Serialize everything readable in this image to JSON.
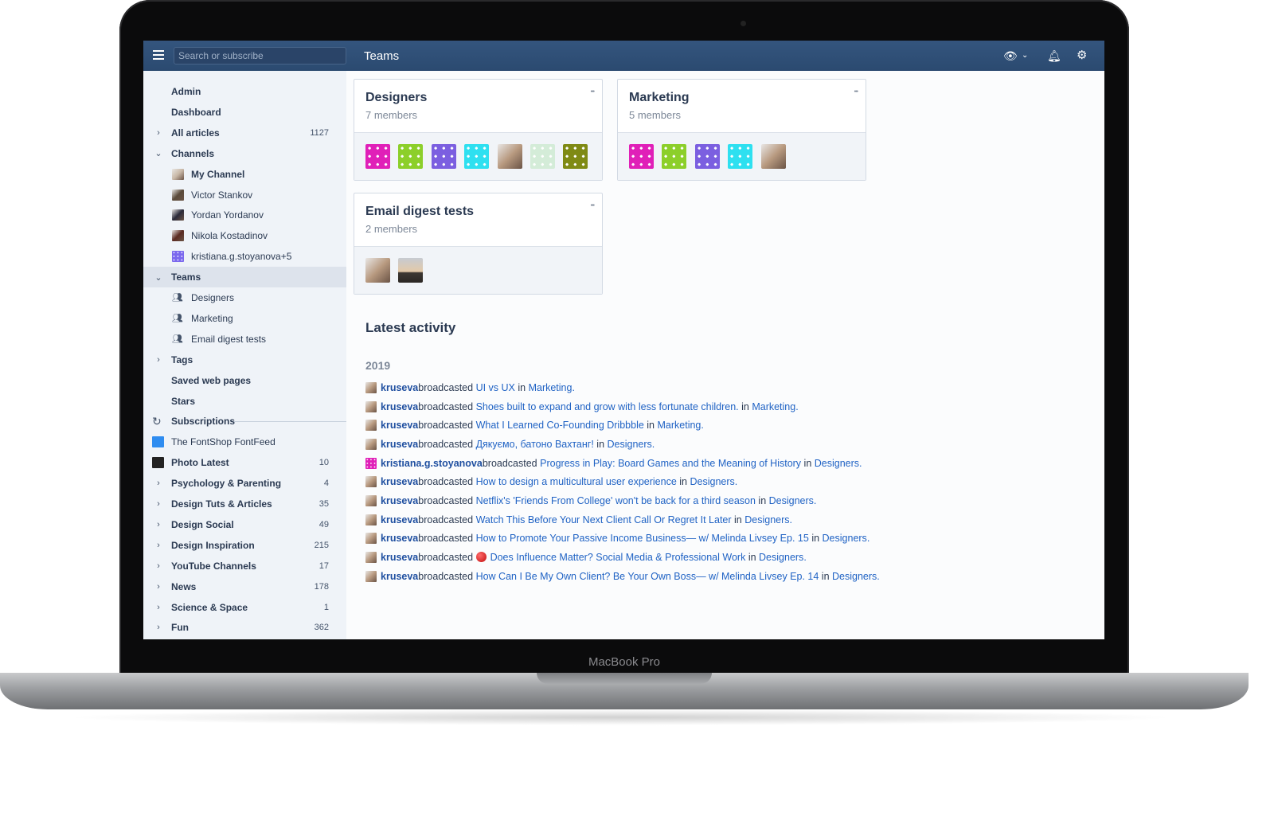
{
  "device": {
    "brand": "MacBook Pro"
  },
  "header": {
    "search_placeholder": "Search or subscribe",
    "title": "Teams",
    "icons": [
      "menu-icon",
      "eye-icon",
      "chevron-down-icon",
      "bell-icon",
      "gear-icon"
    ]
  },
  "sidebar": {
    "items": [
      {
        "label": "Admin",
        "bold": true
      },
      {
        "label": "Dashboard",
        "bold": true
      },
      {
        "label": "All articles",
        "bold": true,
        "chevron": "›",
        "count": "1127"
      },
      {
        "label": "Channels",
        "bold": true,
        "chevron": "⌄"
      },
      {
        "label": "My Channel",
        "bold": true,
        "sub": true,
        "icon": "photo",
        "color": "#c9b8a8"
      },
      {
        "label": "Victor Stankov",
        "sub": true,
        "icon": "photo",
        "color": "#5a4a3a"
      },
      {
        "label": "Yordan Yordanov",
        "sub": true,
        "icon": "photo",
        "color": "#2a2a3a"
      },
      {
        "label": "Nikola Kostadinov",
        "sub": true,
        "icon": "photo",
        "color": "#5a2a22"
      },
      {
        "label": "kristiana.g.stoyanova+5",
        "sub": true,
        "icon": "identicon",
        "color": "#7b68ee"
      },
      {
        "label": "Teams",
        "bold": true,
        "chevron": "⌄",
        "selected": true
      },
      {
        "label": "Designers",
        "sub": true,
        "icon": "team"
      },
      {
        "label": "Marketing",
        "sub": true,
        "icon": "team"
      },
      {
        "label": "Email digest tests",
        "sub": true,
        "icon": "team"
      },
      {
        "label": "Tags",
        "bold": true,
        "chevron": "›"
      },
      {
        "label": "Saved web pages",
        "bold": true
      },
      {
        "label": "Stars",
        "bold": true
      },
      {
        "label": "Subscriptions",
        "bold": true,
        "icon": "refresh",
        "divider": true
      },
      {
        "label": "The FontShop FontFeed",
        "icon": "feed",
        "color": "#2e8cf0"
      },
      {
        "label": "Photo Latest",
        "bold": true,
        "icon": "feed",
        "color": "#222222",
        "count": "10"
      },
      {
        "label": "Psychology & Parenting",
        "bold": true,
        "chevron": "›",
        "count": "4"
      },
      {
        "label": "Design Tuts & Articles",
        "bold": true,
        "chevron": "›",
        "count": "35"
      },
      {
        "label": "Design Social",
        "bold": true,
        "chevron": "›",
        "count": "49"
      },
      {
        "label": "Design Inspiration",
        "bold": true,
        "chevron": "›",
        "count": "215"
      },
      {
        "label": "YouTube Channels",
        "bold": true,
        "chevron": "›",
        "count": "17"
      },
      {
        "label": "News",
        "bold": true,
        "chevron": "›",
        "count": "178"
      },
      {
        "label": "Science & Space",
        "bold": true,
        "chevron": "›",
        "count": "1"
      },
      {
        "label": "Fun",
        "bold": true,
        "chevron": "›",
        "count": "362"
      }
    ]
  },
  "teams": [
    {
      "name": "Designers",
      "members": "7 members",
      "avatars": [
        "#e020b8",
        "#8ccf2a",
        "#7b5fe0",
        "#2ee0f0",
        "photo",
        "#d4ecd8",
        "#7f8a14"
      ]
    },
    {
      "name": "Marketing",
      "members": "5 members",
      "avatars": [
        "#e020b8",
        "#8ccf2a",
        "#7b5fe0",
        "#2ee0f0",
        "photo"
      ]
    },
    {
      "name": "Email digest tests",
      "members": "2 members",
      "avatars": [
        "photo",
        "photo2"
      ]
    }
  ],
  "activity": {
    "title": "Latest activity",
    "year": "2019",
    "verb": "broadcasted",
    "in": "in",
    "items": [
      {
        "user": "kruseva",
        "title": "UI vs UX",
        "team": "Marketing"
      },
      {
        "user": "kruseva",
        "title": "Shoes built to expand and grow with less fortunate children.",
        "team": "Marketing"
      },
      {
        "user": "kruseva",
        "title": "What I Learned Co-Founding Dribbble",
        "team": "Marketing"
      },
      {
        "user": "kruseva",
        "title": "Дякуємо, батоно Вахтанг!",
        "team": "Designers"
      },
      {
        "user": "kristiana.g.stoyanova",
        "title": "Progress in Play: Board Games and the Meaning of History",
        "team": "Designers",
        "identicon": true
      },
      {
        "user": "kruseva",
        "title": "How to design a multicultural user experience",
        "team": "Designers"
      },
      {
        "user": "kruseva",
        "title": "Netflix's 'Friends From College' won't be back for a third season",
        "team": "Designers"
      },
      {
        "user": "kruseva",
        "title": "Watch This Before Your Next Client Call Or Regret It Later",
        "team": "Designers"
      },
      {
        "user": "kruseva",
        "title": "How to Promote Your Passive Income Business— w/ Melinda Livsey Ep. 15",
        "team": "Designers"
      },
      {
        "user": "kruseva",
        "title": "Does Influence Matter? Social Media & Professional Work",
        "team": "Designers",
        "red_dot": true
      },
      {
        "user": "kruseva",
        "title": "How Can I Be My Own Client? Be Your Own Boss— w/ Melinda Livsey Ep. 14",
        "team": "Designers"
      }
    ]
  }
}
